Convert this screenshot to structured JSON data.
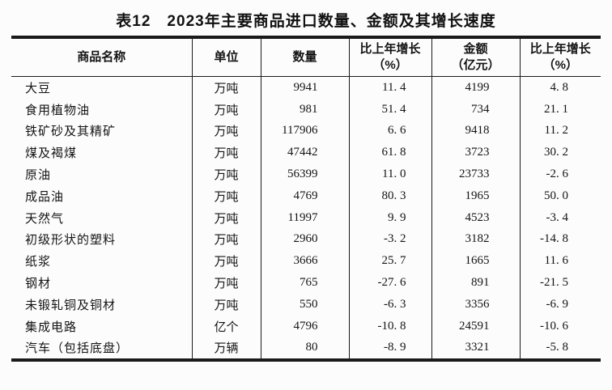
{
  "title": "表12　2023年主要商品进口数量、金额及其增长速度",
  "table": {
    "headers": [
      {
        "key": "commodity",
        "label": "商品名称",
        "sub": ""
      },
      {
        "key": "unit",
        "label": "单位",
        "sub": ""
      },
      {
        "key": "quantity",
        "label": "数量",
        "sub": ""
      },
      {
        "key": "quantity-growth",
        "label": "比上年增长",
        "sub": "（%）"
      },
      {
        "key": "value",
        "label": "金额",
        "sub": "（亿元）"
      },
      {
        "key": "value-growth",
        "label": "比上年增长",
        "sub": "（%）"
      }
    ],
    "rows": [
      [
        "大豆",
        "万吨",
        "9941",
        "11.4",
        "4199",
        "4.8"
      ],
      [
        "食用植物油",
        "万吨",
        "981",
        "51.4",
        "734",
        "21.1"
      ],
      [
        "铁矿砂及其精矿",
        "万吨",
        "117906",
        "6.6",
        "9418",
        "11.2"
      ],
      [
        "煤及褐煤",
        "万吨",
        "47442",
        "61.8",
        "3723",
        "30.2"
      ],
      [
        "原油",
        "万吨",
        "56399",
        "11.0",
        "23733",
        "-2.6"
      ],
      [
        "成品油",
        "万吨",
        "4769",
        "80.3",
        "1965",
        "50.0"
      ],
      [
        "天然气",
        "万吨",
        "11997",
        "9.9",
        "4523",
        "-3.4"
      ],
      [
        "初级形状的塑料",
        "万吨",
        "2960",
        "-3.2",
        "3182",
        "-14.8"
      ],
      [
        "纸浆",
        "万吨",
        "3666",
        "25.7",
        "1665",
        "11.6"
      ],
      [
        "钢材",
        "万吨",
        "765",
        "-27.6",
        "891",
        "-21.5"
      ],
      [
        "未锻轧铜及铜材",
        "万吨",
        "550",
        "-6.3",
        "3356",
        "-6.9"
      ],
      [
        "集成电路",
        "亿个",
        "4796",
        "-10.8",
        "24591",
        "-10.6"
      ],
      [
        "汽车（包括底盘）",
        "万辆",
        "80",
        "-8.9",
        "3321",
        "-5.8"
      ]
    ]
  },
  "colors": {
    "text": "#141414",
    "rule": "#1a1a1a",
    "background": "#fcfcfc"
  },
  "chart_data": {
    "type": "table",
    "title": "表12　2023年主要商品进口数量、金额及其增长速度",
    "columns": [
      "商品名称",
      "单位",
      "数量",
      "比上年增长（%）",
      "金额（亿元）",
      "比上年增长（%）"
    ],
    "rows": [
      [
        "大豆",
        "万吨",
        9941,
        11.4,
        4199,
        4.8
      ],
      [
        "食用植物油",
        "万吨",
        981,
        51.4,
        734,
        21.1
      ],
      [
        "铁矿砂及其精矿",
        "万吨",
        117906,
        6.6,
        9418,
        11.2
      ],
      [
        "煤及褐煤",
        "万吨",
        47442,
        61.8,
        3723,
        30.2
      ],
      [
        "原油",
        "万吨",
        56399,
        11.0,
        23733,
        -2.6
      ],
      [
        "成品油",
        "万吨",
        4769,
        80.3,
        1965,
        50.0
      ],
      [
        "天然气",
        "万吨",
        11997,
        9.9,
        4523,
        -3.4
      ],
      [
        "初级形状的塑料",
        "万吨",
        2960,
        -3.2,
        3182,
        -14.8
      ],
      [
        "纸浆",
        "万吨",
        3666,
        25.7,
        1665,
        11.6
      ],
      [
        "钢材",
        "万吨",
        765,
        -27.6,
        891,
        -21.5
      ],
      [
        "未锻轧铜及铜材",
        "万吨",
        550,
        -6.3,
        3356,
        -6.9
      ],
      [
        "集成电路",
        "亿个",
        4796,
        -10.8,
        24591,
        -10.6
      ],
      [
        "汽车（包括底盘）",
        "万辆",
        80,
        -8.9,
        3321,
        -5.8
      ]
    ]
  }
}
